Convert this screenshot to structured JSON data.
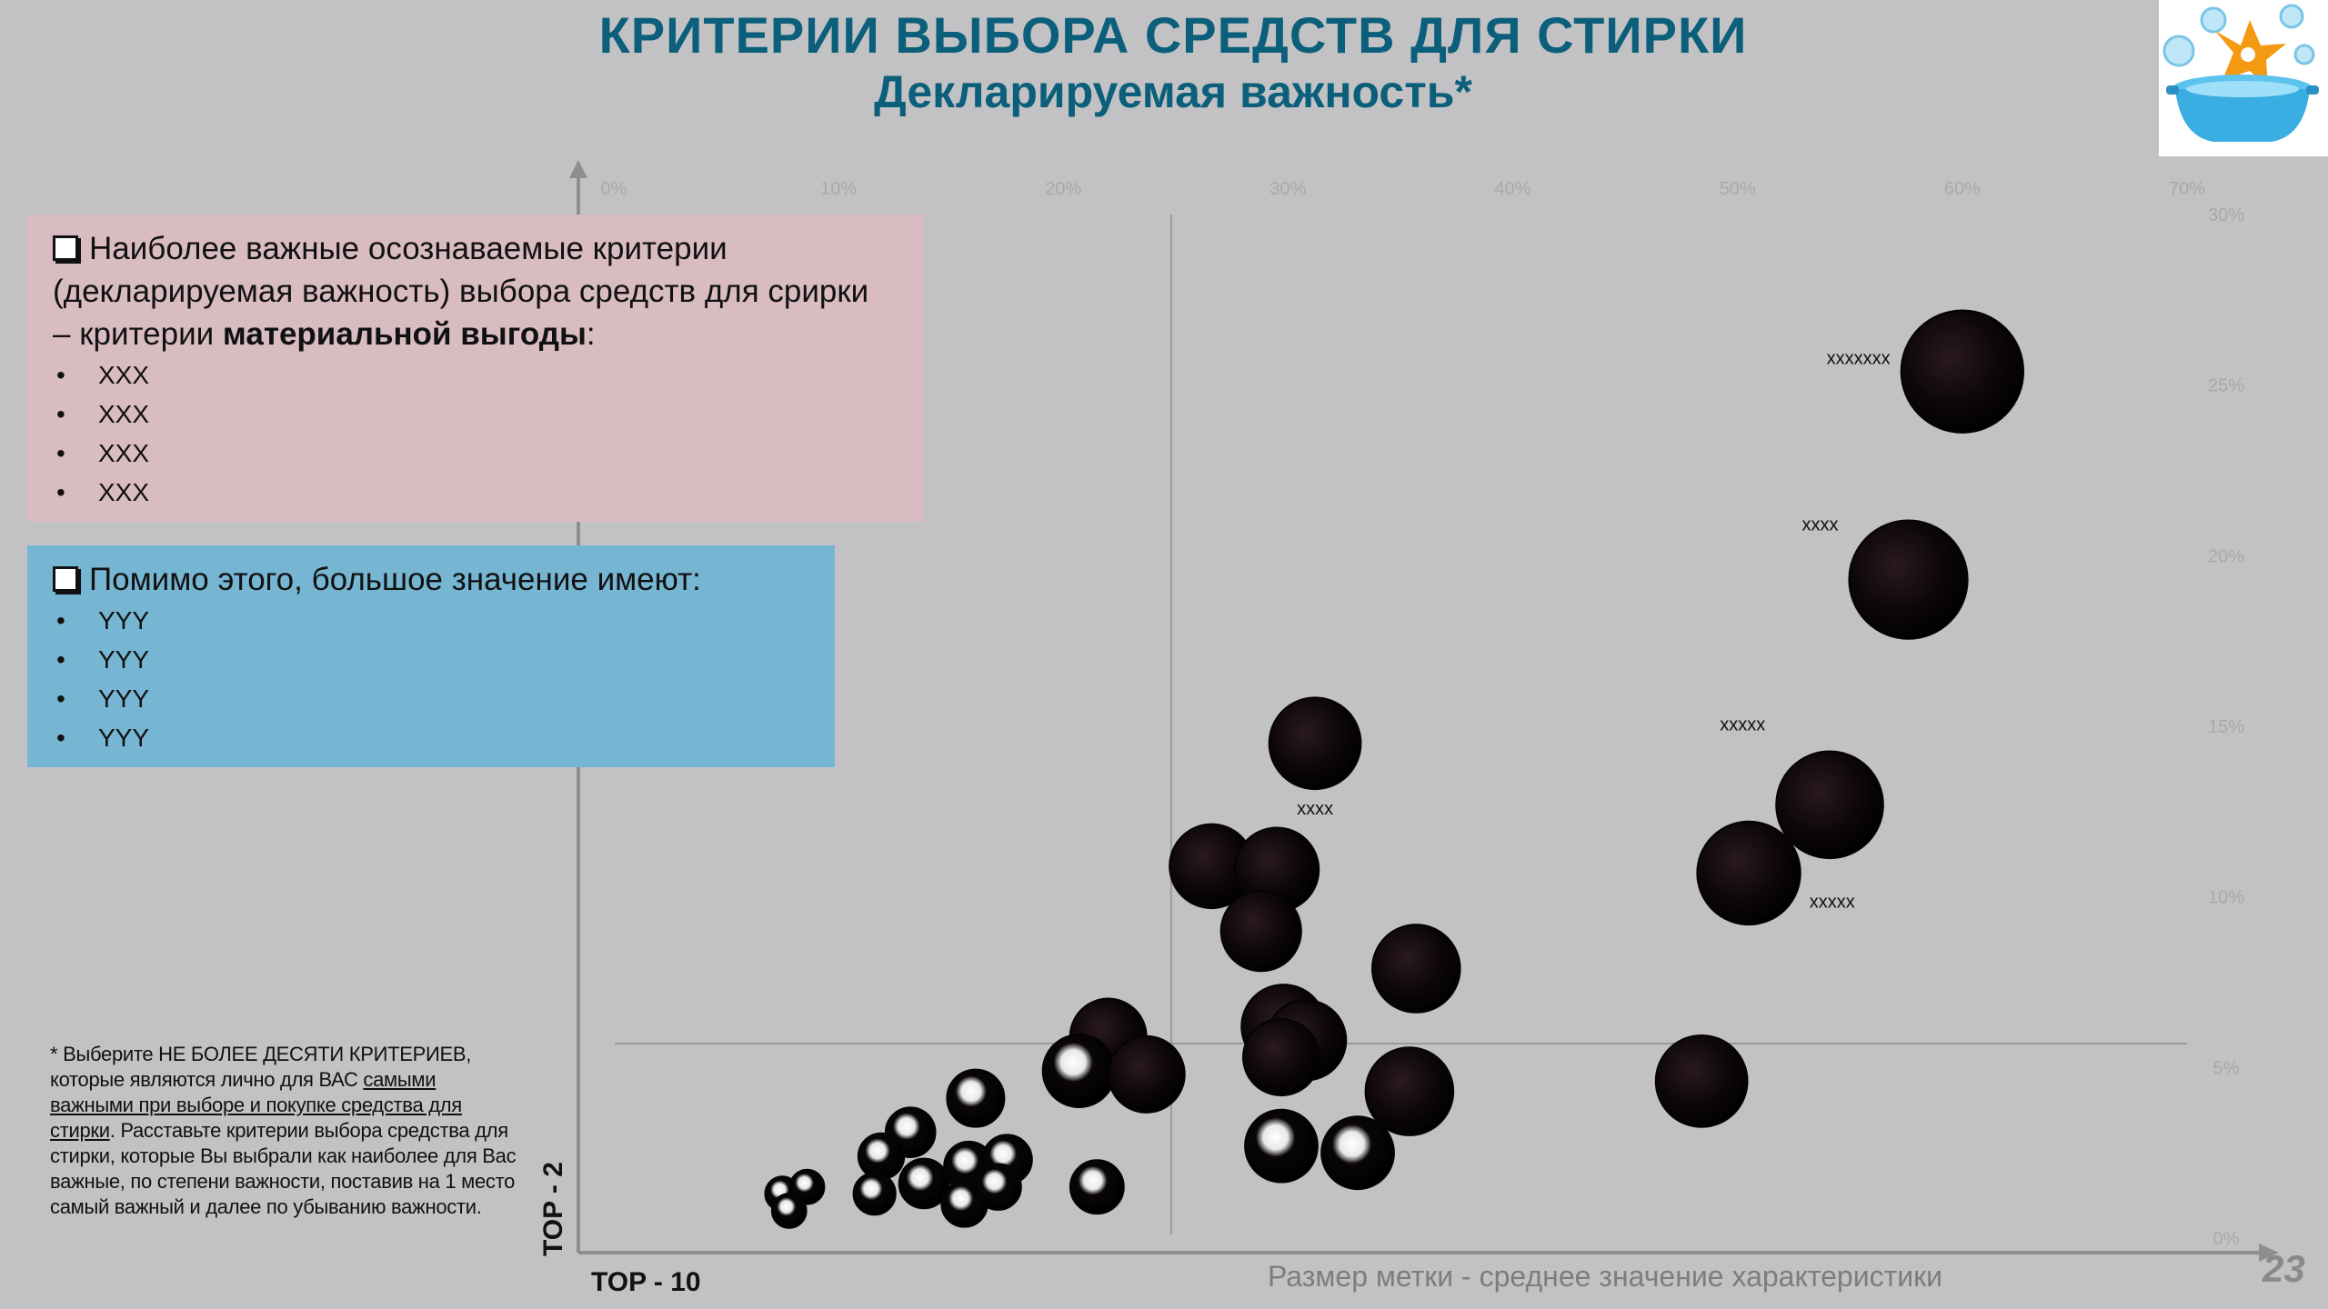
{
  "slide": {
    "title": "КРИТЕРИИ ВЫБОРА СРЕДСТВ ДЛЯ СТИРКИ",
    "subtitle": "Декларируемая важность*",
    "page_number": "23",
    "logo_icon": "laundry-basin-icon"
  },
  "panel_material": {
    "heading_lines": [
      "Наиболее важные осознаваемые критерии",
      "(декларируемая важность) выбора средств для срирки",
      "– критерии ",
      "материальной выгоды",
      ":"
    ],
    "items": [
      "XXX",
      "XXX",
      "XXX",
      "XXX"
    ]
  },
  "panel_other": {
    "heading": "Помимо этого, большое значение имеют:",
    "items": [
      "YYY",
      "YYY",
      "YYY",
      "YYY"
    ]
  },
  "footnote": {
    "part1": "* Выберите НЕ БОЛЕЕ ДЕСЯТИ КРИТЕРИЕВ, которые являются лично для ВАС ",
    "underlined": "самыми важными при выборе и покупке средства для стирки",
    "part2": ". Расставьте критерии выбора средства для стирки, которые Вы выбрали как наиболее для Вас важные, по степени важности, поставив на 1 место самый важный и далее по убыванию важности."
  },
  "axis_labels": {
    "y": "TOP - 2",
    "x": "TOP - 10",
    "size_note": "Размер метки  - среднее значение характеристики"
  },
  "colors": {
    "title": "#0b5f7a",
    "pink_panel": "#d9bcc1",
    "blue_panel": "#76b6d3",
    "background": "#c2c2c4",
    "bubble": "#0a0608"
  },
  "chart_data": {
    "type": "scatter",
    "xlabel": "TOP - 10",
    "ylabel": "TOP - 2",
    "x_ticks": [
      "0%",
      "10%",
      "20%",
      "30%",
      "40%",
      "50%",
      "60%",
      "70%"
    ],
    "y_ticks": [
      "0%",
      "5%",
      "10%",
      "15%",
      "20%",
      "25%",
      "30%"
    ],
    "xlim": [
      0,
      70
    ],
    "ylim": [
      0,
      30
    ],
    "reference_lines": {
      "x": 24.8,
      "y": 5.7
    },
    "size_legend": "Размер метки  - среднее значение характеристики",
    "points": [
      {
        "x": 60.0,
        "y": 25.4,
        "size": 3.2,
        "label": "xxxxxxx"
      },
      {
        "x": 57.6,
        "y": 19.3,
        "size": 3.1,
        "label": "xxxx"
      },
      {
        "x": 54.1,
        "y": 12.7,
        "size": 2.8,
        "label": "xxxxx"
      },
      {
        "x": 50.5,
        "y": 10.7,
        "size": 2.7,
        "label": "xxxxx"
      },
      {
        "x": 31.2,
        "y": 14.5,
        "size": 2.4,
        "label": "xxxx"
      },
      {
        "x": 48.4,
        "y": 4.6,
        "size": 2.4
      },
      {
        "x": 35.7,
        "y": 7.9,
        "size": 2.3
      },
      {
        "x": 35.4,
        "y": 4.3,
        "size": 2.3
      },
      {
        "x": 26.6,
        "y": 10.9,
        "size": 2.2
      },
      {
        "x": 29.5,
        "y": 10.8,
        "size": 2.2
      },
      {
        "x": 28.8,
        "y": 9.0,
        "size": 2.1
      },
      {
        "x": 29.8,
        "y": 6.2,
        "size": 2.2
      },
      {
        "x": 30.8,
        "y": 5.8,
        "size": 2.1
      },
      {
        "x": 29.7,
        "y": 5.3,
        "size": 2.0
      },
      {
        "x": 29.7,
        "y": 2.7,
        "size": 1.9
      },
      {
        "x": 33.1,
        "y": 2.5,
        "size": 1.9
      },
      {
        "x": 22.0,
        "y": 5.9,
        "size": 2.0
      },
      {
        "x": 20.7,
        "y": 4.9,
        "size": 1.9
      },
      {
        "x": 23.7,
        "y": 4.8,
        "size": 2.0
      },
      {
        "x": 21.5,
        "y": 1.5,
        "size": 1.4
      },
      {
        "x": 16.1,
        "y": 4.1,
        "size": 1.5
      },
      {
        "x": 13.2,
        "y": 3.1,
        "size": 1.3
      },
      {
        "x": 11.9,
        "y": 2.4,
        "size": 1.2
      },
      {
        "x": 13.8,
        "y": 1.6,
        "size": 1.3
      },
      {
        "x": 15.8,
        "y": 2.1,
        "size": 1.3
      },
      {
        "x": 15.6,
        "y": 1.0,
        "size": 1.2
      },
      {
        "x": 17.5,
        "y": 2.3,
        "size": 1.3
      },
      {
        "x": 17.1,
        "y": 1.5,
        "size": 1.2
      },
      {
        "x": 11.6,
        "y": 1.3,
        "size": 1.1
      },
      {
        "x": 7.5,
        "y": 1.3,
        "size": 0.9
      },
      {
        "x": 8.6,
        "y": 1.5,
        "size": 0.9
      },
      {
        "x": 7.8,
        "y": 0.8,
        "size": 0.9
      }
    ]
  }
}
